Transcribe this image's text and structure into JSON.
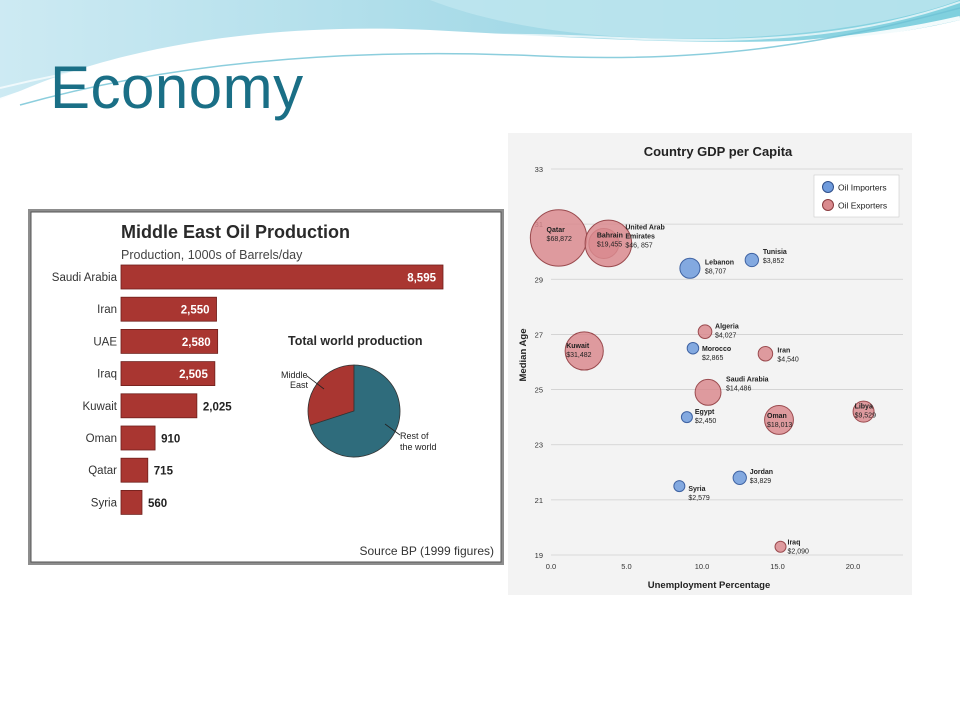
{
  "slide": {
    "title": "Economy"
  },
  "oil_chart": {
    "title": "Middle East Oil Production",
    "subtitle": "Production, 1000s of Barrels/day",
    "source": "Source BP (1999 figures)",
    "pie_title": "Total world production",
    "pie_labels": {
      "middle_east_line1": "Middle",
      "middle_east_line2": "East",
      "rest_line1": "Rest of",
      "rest_line2": "the world"
    }
  },
  "gdp_chart": {
    "title": "Country GDP per Capita",
    "xlabel": "Unemployment Percentage",
    "ylabel": "Median Age",
    "legend": {
      "importers": "Oil Importers",
      "exporters": "Oil Exporters"
    }
  },
  "colors": {
    "title": "#1a6f86",
    "bar": "#a93631",
    "pie_me": "#a93631",
    "pie_rest": "#2f6c7c",
    "importer": "#6f9bdc",
    "exporter": "#d98a8e"
  },
  "chart_data": [
    {
      "type": "bar",
      "title": "Middle East Oil Production",
      "subtitle": "Production, 1000s of Barrels/day",
      "categories": [
        "Saudi Arabia",
        "Iran",
        "UAE",
        "Iraq",
        "Kuwait",
        "Oman",
        "Qatar",
        "Syria"
      ],
      "values": [
        8595,
        2550,
        2580,
        2505,
        2025,
        910,
        715,
        560
      ],
      "value_labels": [
        "8,595",
        "2,550",
        "2,580",
        "2,505",
        "2,025",
        "910",
        "715",
        "560"
      ],
      "orientation": "horizontal"
    },
    {
      "type": "pie",
      "title": "Total world production",
      "slices": [
        {
          "label": "Middle East",
          "value": 30
        },
        {
          "label": "Rest of the world",
          "value": 70
        }
      ]
    },
    {
      "type": "scatter",
      "title": "Country GDP per Capita",
      "xlabel": "Unemployment Percentage",
      "ylabel": "Median Age",
      "xlim": [
        0,
        22
      ],
      "ylim": [
        19,
        33
      ],
      "xticks": [
        "0.0",
        "5.0",
        "10.0",
        "15.0",
        "20.0"
      ],
      "yticks": [
        "19",
        "21",
        "23",
        "25",
        "27",
        "29",
        "31",
        "33"
      ],
      "legend_position": "top-right",
      "series": [
        {
          "name": "Oil Importers",
          "points": [
            {
              "country": "Lebanon",
              "gdp": "$8,707",
              "x": 9.2,
              "y": 29.4,
              "label": [
                "Lebanon",
                "$8,707"
              ]
            },
            {
              "country": "Tunisia",
              "gdp": "$3,852",
              "x": 13.3,
              "y": 29.7,
              "label": [
                "Tunisia",
                "$3,852"
              ]
            },
            {
              "country": "Morocco",
              "gdp": "$2,865",
              "x": 9.4,
              "y": 26.5,
              "label": [
                "Morocco",
                "$2,865"
              ]
            },
            {
              "country": "Egypt",
              "gdp": "$2,450",
              "x": 9.0,
              "y": 24.0,
              "label": [
                "Egypt",
                "$2,450"
              ]
            },
            {
              "country": "Jordan",
              "gdp": "$3,829",
              "x": 12.5,
              "y": 21.8,
              "label": [
                "Jordan",
                "$3,829"
              ]
            },
            {
              "country": "Syria",
              "gdp": "$2,579",
              "x": 8.5,
              "y": 21.5,
              "label": [
                "Syria",
                "$2,579"
              ]
            }
          ]
        },
        {
          "name": "Oil Exporters",
          "points": [
            {
              "country": "Qatar",
              "gdp": "$68,872",
              "x": 0.5,
              "y": 30.5,
              "label": [
                "Qatar",
                "$68,872"
              ]
            },
            {
              "country": "Bahrain",
              "gdp": "$19,455",
              "x": 3.5,
              "y": 30.3,
              "label": [
                "Bahrain",
                "$19,455"
              ]
            },
            {
              "country": "United Arab Emirates",
              "gdp": "$46, 857",
              "x": 3.8,
              "y": 30.3,
              "label": [
                "United Arab",
                "Emirates",
                "$46, 857"
              ]
            },
            {
              "country": "Algeria",
              "gdp": "$4,027",
              "x": 10.2,
              "y": 27.1,
              "label": [
                "Algeria",
                "$4,027"
              ]
            },
            {
              "country": "Kuwait",
              "gdp": "$31,482",
              "x": 2.2,
              "y": 26.4,
              "label": [
                "Kuwait",
                "$31,482"
              ]
            },
            {
              "country": "Iran",
              "gdp": "$4,540",
              "x": 14.2,
              "y": 26.3,
              "label": [
                "Iran",
                "$4,540"
              ]
            },
            {
              "country": "Saudi Arabia",
              "gdp": "$14,486",
              "x": 10.4,
              "y": 24.9,
              "label": [
                "Saudi Arabia",
                "$14,486"
              ]
            },
            {
              "country": "Oman",
              "gdp": "$18,013",
              "x": 15.1,
              "y": 23.9,
              "label": [
                "Oman",
                "$18,013"
              ]
            },
            {
              "country": "Libya",
              "gdp": "$9,529",
              "x": 20.7,
              "y": 24.2,
              "label": [
                "Libya",
                "$9,529"
              ]
            },
            {
              "country": "Iraq",
              "gdp": "$2,090",
              "x": 15.2,
              "y": 19.3,
              "label": [
                "Iraq",
                "$2,090"
              ]
            }
          ]
        }
      ]
    }
  ]
}
